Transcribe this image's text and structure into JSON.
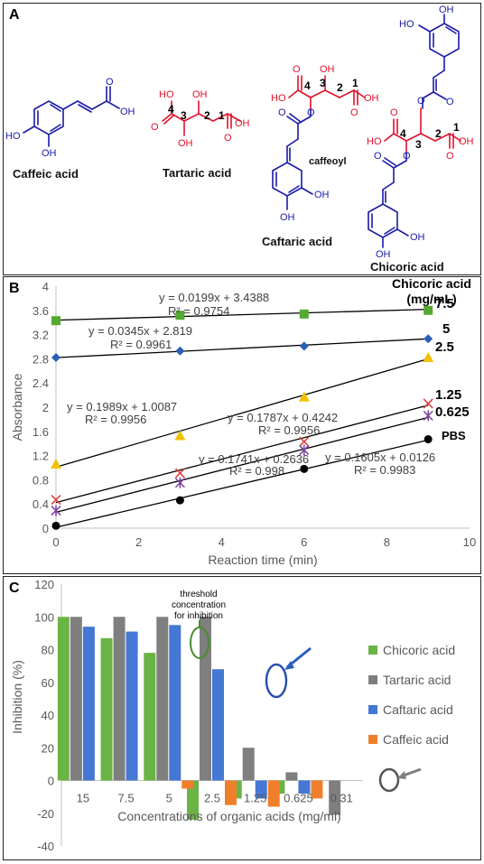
{
  "panel_a": {
    "label": "A",
    "molecules": [
      {
        "name": "Caffeic acid"
      },
      {
        "name": "Tartaric acid"
      },
      {
        "name": "Caftaric acid"
      },
      {
        "name": "Chicoric acid"
      }
    ],
    "atom_labels": {
      "oh": "OH",
      "o": "O",
      "ho": "HO",
      "caffeoyl": "caffeoyl"
    },
    "carbon_numbers": [
      "1",
      "2",
      "3",
      "4"
    ],
    "colors": {
      "caffeoyl": "#1a1aa8",
      "tartaric": "#e0102a",
      "black": "#111111"
    }
  },
  "panel_b": {
    "label": "B"
  },
  "panel_c": {
    "label": "C",
    "annotation": {
      "line1": "threshold",
      "line2": "concentration",
      "line3": "for inhibition"
    }
  },
  "chart_data": [
    {
      "type": "scatter",
      "xlabel": "Reaction time (min)",
      "ylabel": "Absorbance",
      "xlim": [
        0,
        10
      ],
      "ylim": [
        0,
        4
      ],
      "xticks": [
        "0",
        "2",
        "4",
        "6",
        "8",
        "10"
      ],
      "yticks": [
        "0",
        "0.4",
        "0.8",
        "1.2",
        "1.6",
        "2",
        "2.4",
        "2.8",
        "3.2",
        "3.6",
        "4"
      ],
      "grid": false,
      "legend_title": "Chicoric acid\n(mg/mL)",
      "x": [
        0,
        3,
        6,
        9
      ],
      "series": [
        {
          "name": "7.5",
          "values": [
            3.43,
            3.52,
            3.54,
            3.6
          ],
          "color": "#55a832",
          "marker": "square",
          "fit": {
            "slope": 0.0199,
            "intercept": 3.4388,
            "equation": "y = 0.0199x + 3.4388",
            "r2": "R² = 0.9754"
          }
        },
        {
          "name": "5",
          "values": [
            2.82,
            2.93,
            3.01,
            3.13
          ],
          "color": "#2a5fb4",
          "marker": "diamond",
          "fit": {
            "slope": 0.0345,
            "intercept": 2.819,
            "equation": "y = 0.0345x + 2.819",
            "r2": "R² = 0.9961"
          }
        },
        {
          "name": "2.5",
          "values": [
            1.06,
            1.53,
            2.17,
            2.82
          ],
          "color": "#f2c100",
          "marker": "triangle",
          "fit": {
            "slope": 0.1989,
            "intercept": 1.0087,
            "equation": "y = 0.1989x + 1.0087",
            "r2": "R² = 0.9956"
          }
        },
        {
          "name": "1.25",
          "values": [
            0.47,
            0.91,
            1.43,
            2.06
          ],
          "color": "#e2403a",
          "marker": "x",
          "fit": {
            "slope": 0.1787,
            "intercept": 0.4242,
            "equation": "y = 0.1787x + 0.4242",
            "r2": "R² = 0.9956"
          }
        },
        {
          "name": "0.625",
          "values": [
            0.29,
            0.75,
            1.29,
            1.86
          ],
          "color": "#7a3fa0",
          "marker": "star",
          "fit": {
            "slope": 0.1741,
            "intercept": 0.2636,
            "equation": "y = 0.1741x + 0.2636",
            "r2": "R² = 0.998"
          }
        },
        {
          "name": "PBS",
          "values": [
            0.04,
            0.46,
            0.98,
            1.47
          ],
          "color": "#000000",
          "marker": "circle",
          "fit": {
            "slope": 0.1605,
            "intercept": 0.0126,
            "equation": "y = 0.1605x + 0.0126",
            "r2": "R² = 0.9983"
          }
        }
      ]
    },
    {
      "type": "bar",
      "xlabel": "Concentrations of organic acids (mg/ml)",
      "ylabel": "Inhibition (%)",
      "ylim": [
        -40,
        120
      ],
      "yticks": [
        "-40",
        "-20",
        "0",
        "20",
        "40",
        "60",
        "80",
        "100",
        "120"
      ],
      "legend_position": "right",
      "categories": [
        "15",
        "7.5",
        "5",
        "2.5",
        "1.25",
        "0.625",
        "0.31"
      ],
      "series": [
        {
          "name": "Chicoric acid",
          "color": "#6ab446",
          "values": [
            100,
            87,
            78,
            -24,
            -11,
            -8,
            null
          ]
        },
        {
          "name": "Tartaric acid",
          "color": "#7f7f7f",
          "values": [
            100,
            100,
            100,
            100,
            20,
            5,
            -21
          ]
        },
        {
          "name": "Caftaric acid",
          "color": "#4577d4",
          "values": [
            94,
            91,
            95,
            68,
            -11,
            -8,
            null
          ]
        },
        {
          "name": "Caffeic acid",
          "color": "#f07f2b",
          "values": [
            null,
            null,
            -5,
            -15,
            -16,
            -11,
            null
          ]
        }
      ]
    }
  ]
}
